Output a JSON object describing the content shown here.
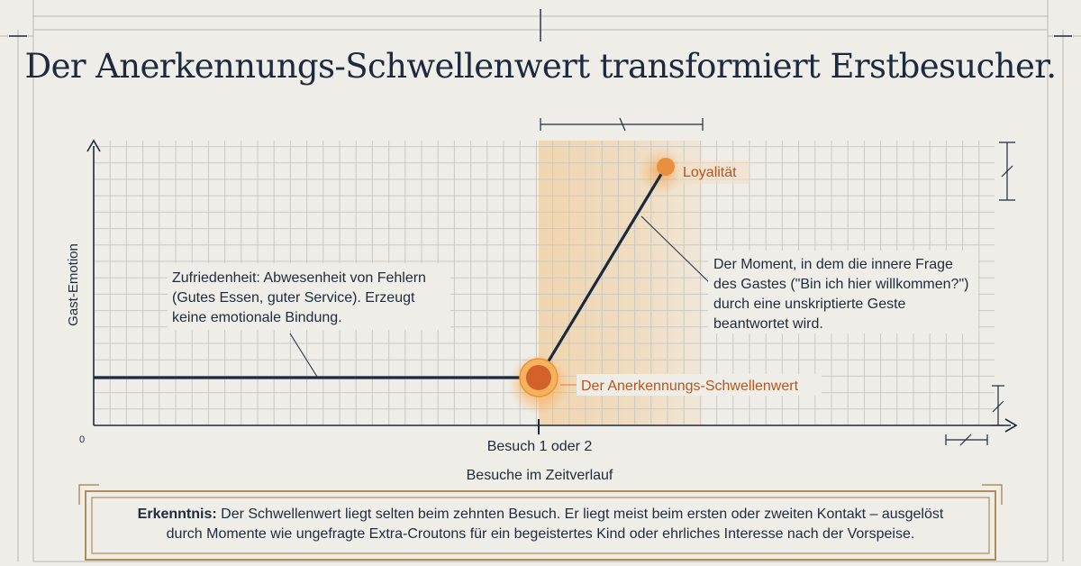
{
  "title": "Der Anerkennungs-Schwellenwert transformiert Erstbesucher.",
  "colors": {
    "ink": "#1c2a3f",
    "accent": "#e07a2a",
    "accent_text": "#b8551d",
    "grid": "#c9c9c6",
    "frame": "#b08c5a"
  },
  "chart_data": {
    "type": "line",
    "ylabel": "Gast-Emotion",
    "xlabel": "Besuche im Zeitverlauf",
    "origin_label": "0",
    "x_tick_label": "Besuch 1 oder 2",
    "series": [
      {
        "points": [
          {
            "x": 0,
            "y": 0.17
          },
          {
            "x": 0.63,
            "y": 0.17
          },
          {
            "x": 0.81,
            "y": 0.92
          }
        ]
      }
    ],
    "annotations": {
      "threshold_label": "Der Anerkennungs-Schwellenwert",
      "loyalty_label": "Loyalität",
      "satisfaction_lines": [
        "Zufriedenheit: Abwesenheit von Fehlern",
        "(Gutes Essen, guter Service). Erzeugt",
        "keine emotionale Bindung."
      ],
      "moment_lines": [
        "Der Moment, in dem die innere Frage",
        "des Gastes (\"Bin ich hier willkommen?\")",
        "durch eine unskriptierte Geste",
        "beantwortet wird."
      ]
    }
  },
  "insight": {
    "label": "Erkenntnis:",
    "line1": "Der Schwellenwert liegt selten beim zehnten Besuch. Er liegt meist beim ersten oder zweiten Kontakt – ausgelöst",
    "line2": "durch Momente wie ungefragte Extra-Croutons für ein begeistertes Kind oder ehrliches Interesse nach der Vorspeise."
  }
}
